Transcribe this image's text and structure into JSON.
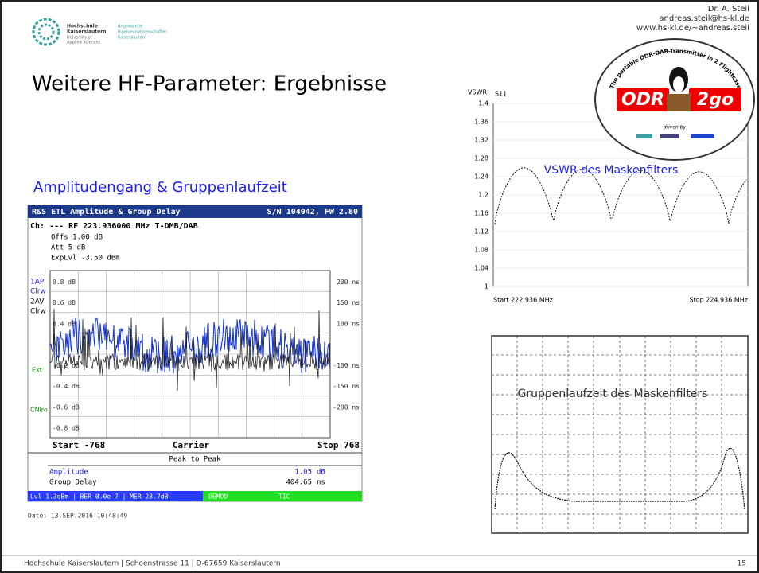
{
  "header": {
    "author": "Dr. A. Steil",
    "email": "andreas.steil@hs-kl.de",
    "url": "www.hs-kl.de/~andreas.steil",
    "logo": {
      "name": [
        "Hochschule",
        "Kaiserslautern"
      ],
      "english": [
        "University of",
        "Applied Sciences"
      ],
      "faculty": [
        "Angewandte",
        "Ingenieurwissenschaften",
        "Kaiserslautern"
      ]
    }
  },
  "title": "Weitere HF-Parameter: Ergebnisse",
  "subtitle": "Amplitudengang & Gruppenlaufzeit",
  "odr_logo": {
    "left": "ODR",
    "right": "2go",
    "arc": "The portable ODR-DAB-Transmitter in 2 Flightcases",
    "driven": "driven by"
  },
  "analyzer": {
    "title": "R&S ETL Amplitude & Group Delay",
    "serial": "S/N 104042, FW 2.80",
    "channel": "Ch: ---  RF 223.936000 MHz  T-DMB/DAB",
    "settings": [
      "Offs 1.00 dB",
      "Att  5 dB",
      "ExpLvl -3.50 dBm"
    ],
    "trace_labels": [
      "1AP",
      "Clrw",
      "2AV",
      "Clrw"
    ],
    "side_labels": [
      "Ext",
      "CNlro"
    ],
    "left_ticks": [
      "0.8 dB",
      "0.6 dB",
      "0.4 dB",
      "-0.2 dB",
      "-0.4 dB",
      "-0.6 dB",
      "-0.8 dB"
    ],
    "right_ticks": [
      "200 ns",
      "150 ns",
      "100 ns",
      "-100 ns",
      "-150 ns",
      "-200 ns"
    ],
    "x_labels": [
      "Start -768",
      "Carrier",
      "Stop 768"
    ],
    "table_title": "Peak to Peak",
    "rows": [
      [
        "Amplitude",
        "1.05",
        "dB"
      ],
      [
        "Group Delay",
        "404.65",
        "ns"
      ]
    ],
    "status": [
      "Lvl 1.3dBm | BER 0.0e-7 | MER 23.7dB",
      "DEMOD",
      "TIC"
    ],
    "date": "Date: 13.SEP.2016  10:48:49"
  },
  "vswr": {
    "y_label": "VSWR",
    "trace": "S11",
    "ylim": [
      1,
      1.4
    ],
    "yticks": [
      1.4,
      1.36,
      1.32,
      1.28,
      1.24,
      1.2,
      1.16,
      1.12,
      1.08,
      1.04,
      1
    ],
    "start": "Start 222.936 MHz",
    "stop": "Stop 224.936 MHz",
    "caption": "VSWR des Maskenfilters"
  },
  "group_delay": {
    "caption": "Gruppenlaufzeit des Maskenfilters"
  },
  "footer": {
    "address": "Hochschule Kaiserslautern | Schoenstrasse 11 | D-67659 Kaiserslautern",
    "page": "15"
  }
}
